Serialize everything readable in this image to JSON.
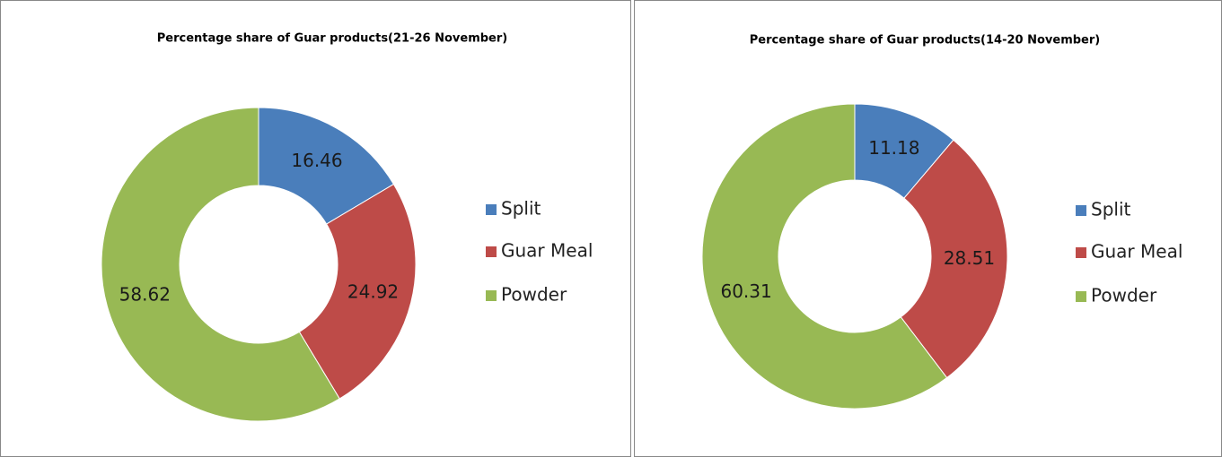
{
  "chart_data": [
    {
      "type": "donut",
      "title": "Percentage share of Guar products(21-26 November)",
      "categories": [
        "Split",
        "Guar Meal",
        "Powder"
      ],
      "values": [
        16.46,
        24.92,
        58.62
      ],
      "colors": [
        "#4a7ebb",
        "#be4b48",
        "#98b954"
      ],
      "legend": "right"
    },
    {
      "type": "donut",
      "title": "Percentage share of Guar products(14-20 November)",
      "categories": [
        "Split",
        "Guar Meal",
        "Powder"
      ],
      "values": [
        11.18,
        28.51,
        60.31
      ],
      "colors": [
        "#4a7ebb",
        "#be4b48",
        "#98b954"
      ],
      "legend": "right"
    }
  ]
}
